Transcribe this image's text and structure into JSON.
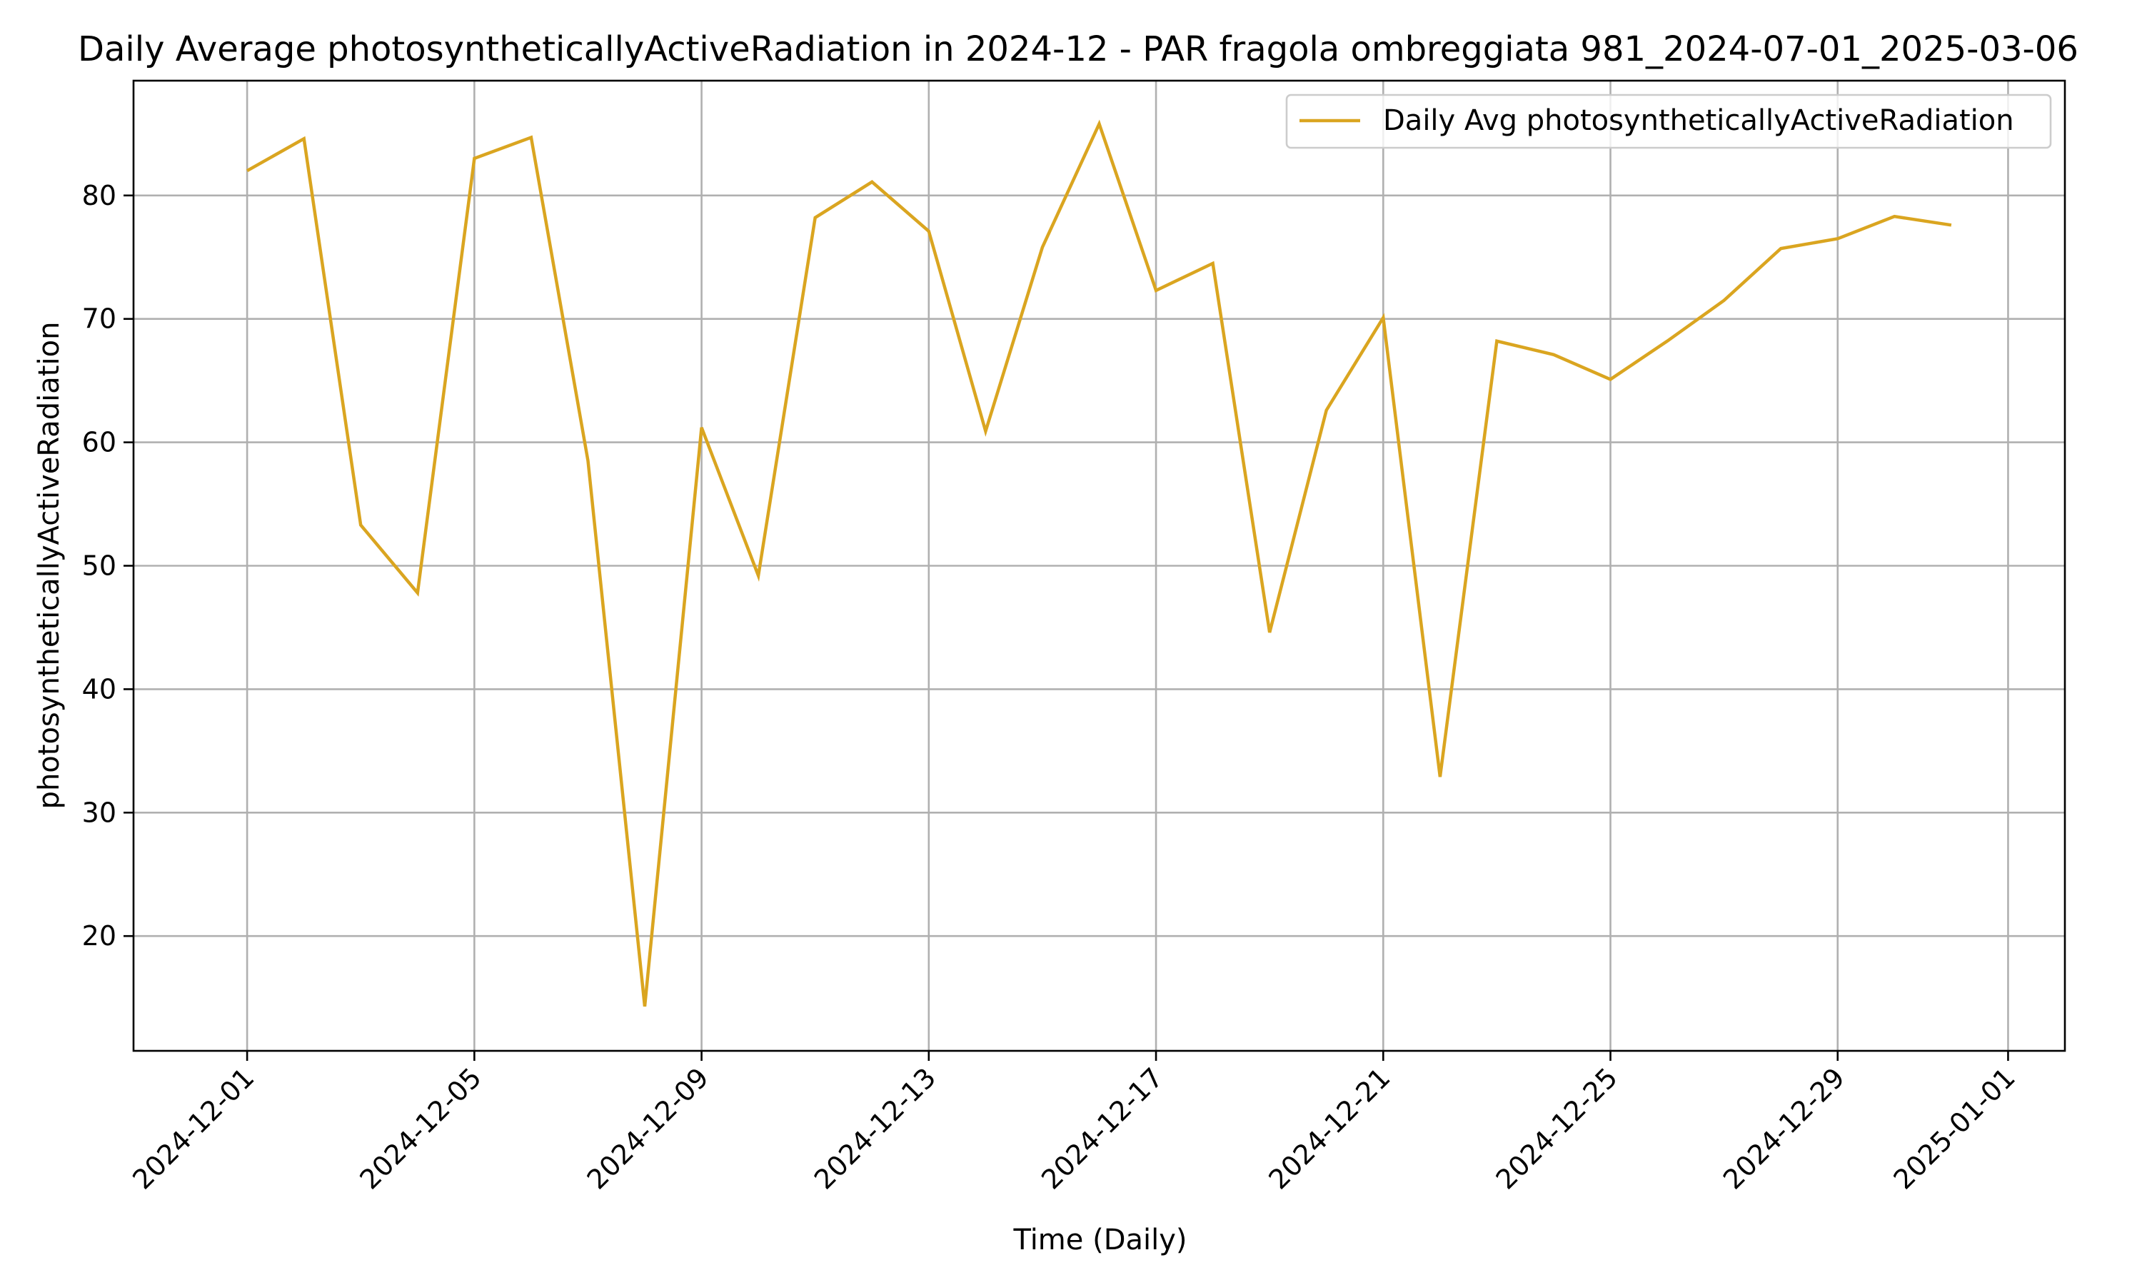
{
  "chart_data": {
    "type": "line",
    "title": "Daily Average photosyntheticallyActiveRadiation in 2024-12 - PAR fragola ombreggiata 981_2024-07-01_2025-03-06",
    "xlabel": "Time (Daily)",
    "ylabel": "photosyntheticallyActiveRadiation",
    "ylim": [
      10.7,
      89.3
    ],
    "xlim": [
      "2024-11-29",
      "2025-01-02"
    ],
    "x_ticks": [
      "2024-12-01",
      "2024-12-05",
      "2024-12-09",
      "2024-12-13",
      "2024-12-17",
      "2024-12-21",
      "2024-12-25",
      "2024-12-29",
      "2025-01-01"
    ],
    "y_ticks": [
      20,
      30,
      40,
      50,
      60,
      70,
      80
    ],
    "grid": true,
    "legend_position": "top-right",
    "series": [
      {
        "name": "Daily Avg photosyntheticallyActiveRadiation",
        "color": "#DAA520",
        "x": [
          "2024-12-01",
          "2024-12-02",
          "2024-12-03",
          "2024-12-04",
          "2024-12-05",
          "2024-12-06",
          "2024-12-07",
          "2024-12-08",
          "2024-12-09",
          "2024-12-10",
          "2024-12-11",
          "2024-12-12",
          "2024-12-13",
          "2024-12-14",
          "2024-12-15",
          "2024-12-16",
          "2024-12-17",
          "2024-12-18",
          "2024-12-19",
          "2024-12-20",
          "2024-12-21",
          "2024-12-22",
          "2024-12-23",
          "2024-12-24",
          "2024-12-25",
          "2024-12-26",
          "2024-12-27",
          "2024-12-28",
          "2024-12-29",
          "2024-12-30",
          "2024-12-31"
        ],
        "values": [
          82.0,
          84.6,
          53.3,
          47.8,
          83.0,
          84.7,
          58.5,
          14.3,
          61.2,
          49.2,
          78.2,
          81.1,
          77.1,
          60.9,
          75.8,
          85.8,
          72.3,
          74.5,
          44.6,
          62.6,
          70.1,
          32.9,
          68.2,
          67.1,
          65.1,
          68.2,
          71.5,
          75.7,
          76.5,
          78.3,
          77.6
        ]
      }
    ]
  }
}
